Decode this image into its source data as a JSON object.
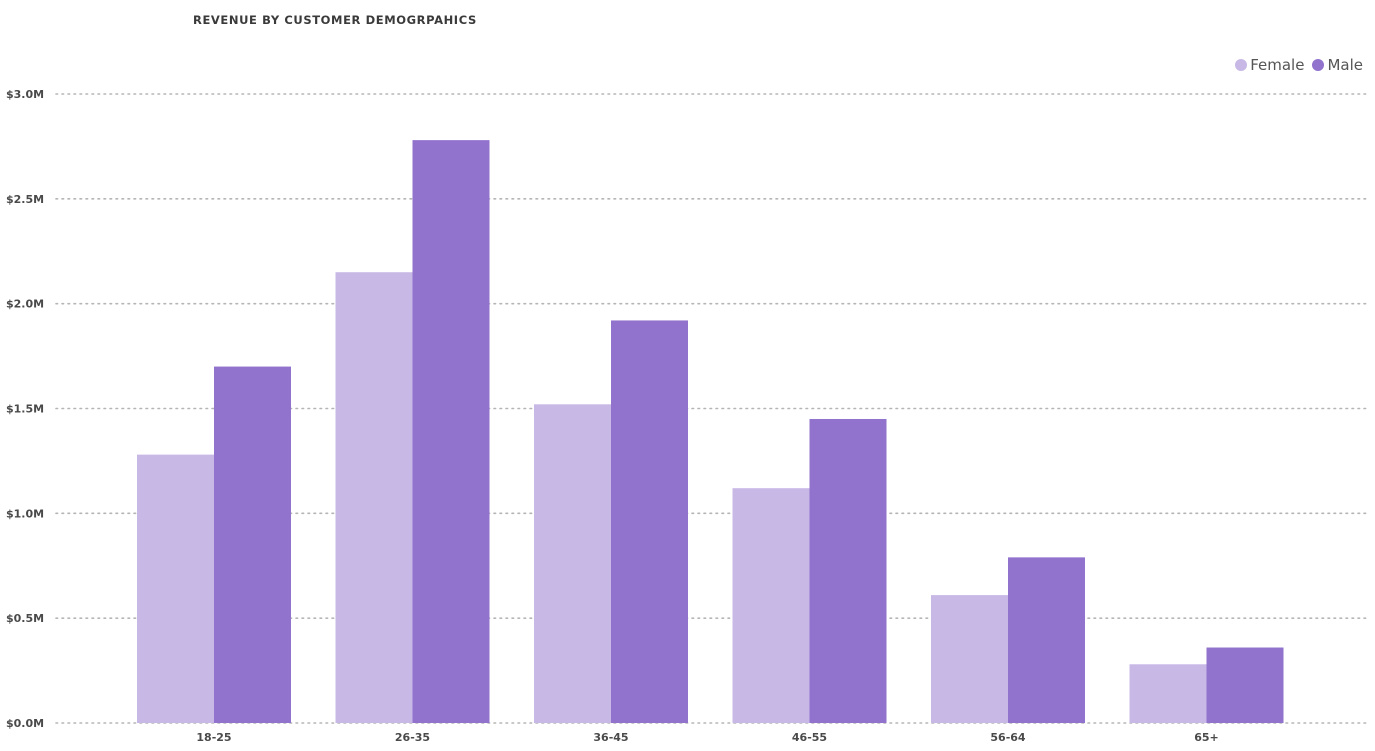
{
  "chart_data": {
    "type": "bar",
    "title": "REVENUE BY CUSTOMER DEMOGRPAHICS",
    "xlabel": "",
    "ylabel": "",
    "categories": [
      "18-25",
      "26-35",
      "36-45",
      "46-55",
      "56-64",
      "65+"
    ],
    "series": [
      {
        "name": "Female",
        "color": "#c8b8e6",
        "values": [
          1.28,
          2.15,
          1.52,
          1.12,
          0.61,
          0.28
        ]
      },
      {
        "name": "Male",
        "color": "#9172cd",
        "values": [
          1.7,
          2.78,
          1.92,
          1.45,
          0.79,
          0.36
        ]
      }
    ],
    "ylim": [
      0,
      3.0
    ],
    "yticks": [
      0,
      0.5,
      1.0,
      1.5,
      2.0,
      2.5,
      3.0
    ],
    "ytick_labels": [
      "$0.0M",
      "$0.5M",
      "$1.0M",
      "$1.5M",
      "$2.0M",
      "$2.5M",
      "$3.0M"
    ],
    "grid": true,
    "legend_position": "top-right"
  }
}
